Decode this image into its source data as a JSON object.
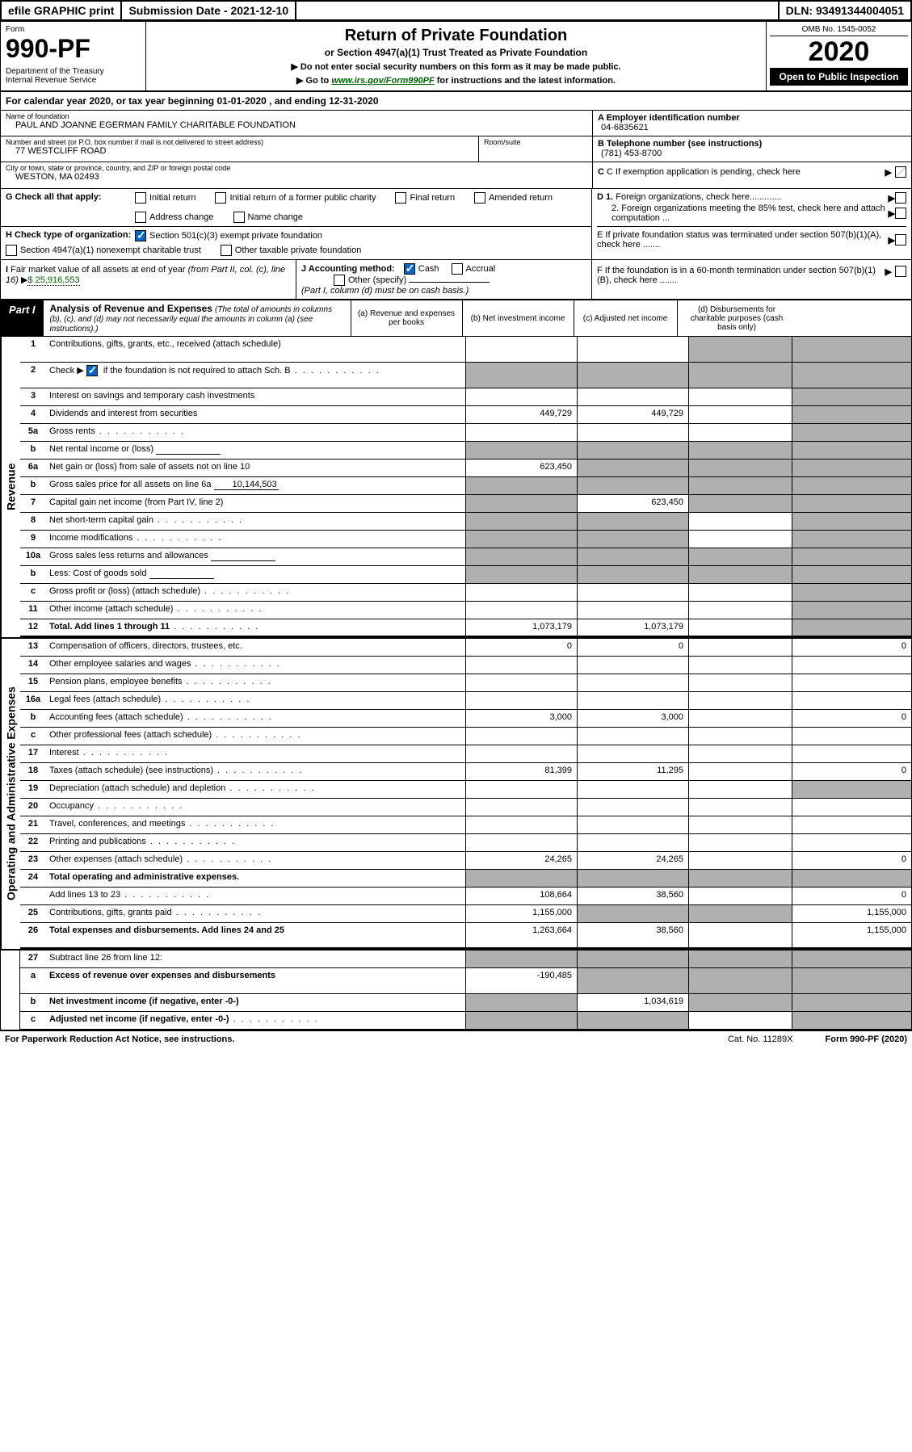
{
  "efile_bar": {
    "efile": "efile GRAPHIC print",
    "submission": "Submission Date - 2021-12-10",
    "dln": "DLN: 93491344004051"
  },
  "header": {
    "form_label": "Form",
    "form_number": "990-PF",
    "dept": "Department of the Treasury\nInternal Revenue Service",
    "title": "Return of Private Foundation",
    "subtitle": "or Section 4947(a)(1) Trust Treated as Private Foundation",
    "note1": "▶ Do not enter social security numbers on this form as it may be made public.",
    "note2_pre": "▶ Go to ",
    "note2_link": "www.irs.gov/Form990PF",
    "note2_post": " for instructions and the latest information.",
    "omb": "OMB No. 1545-0052",
    "year": "2020",
    "open": "Open to Public Inspection"
  },
  "cal_year": "For calendar year 2020, or tax year beginning 01-01-2020                                  , and ending 12-31-2020",
  "entity": {
    "name_label": "Name of foundation",
    "name": "PAUL AND JOANNE EGERMAN FAMILY CHARITABLE FOUNDATION",
    "street_label": "Number and street (or P.O. box number if mail is not delivered to street address)",
    "street": "77 WESTCLIFF ROAD",
    "room_label": "Room/suite",
    "city_label": "City or town, state or province, country, and ZIP or foreign postal code",
    "city": "WESTON, MA  02493",
    "ein_label": "A Employer identification number",
    "ein": "04-6835621",
    "phone_label": "B Telephone number (see instructions)",
    "phone": "(781) 453-8700",
    "c_label": "C If exemption application is pending, check here",
    "d1_label": "D 1. Foreign organizations, check here.............",
    "d2_label": "2. Foreign organizations meeting the 85% test, check here and attach computation ...",
    "e_label": "E  If private foundation status was terminated under section 507(b)(1)(A), check here .......",
    "f_label": "F  If the foundation is in a 60-month termination under section 507(b)(1)(B), check here ......."
  },
  "checks": {
    "g_label": "G Check all that apply:",
    "g_opts": [
      "Initial return",
      "Initial return of a former public charity",
      "Final return",
      "Amended return",
      "Address change",
      "Name change"
    ],
    "h_label": "H Check type of organization:",
    "h_opt1": "Section 501(c)(3) exempt private foundation",
    "h_opt2": "Section 4947(a)(1) nonexempt charitable trust",
    "h_opt3": "Other taxable private foundation",
    "i_label": "I Fair market value of all assets at end of year (from Part II, col. (c), line 16) ▶",
    "i_val": "$  25,916,553",
    "j_label": "J Accounting method:",
    "j_cash": "Cash",
    "j_accrual": "Accrual",
    "j_other": "Other (specify)",
    "j_note": "(Part I, column (d) must be on cash basis.)"
  },
  "part1": {
    "tag": "Part I",
    "title": "Analysis of Revenue and Expenses",
    "title_note": "(The total of amounts in columns (b), (c), and (d) may not necessarily equal the amounts in column (a) (see instructions).)",
    "col_a": "(a)   Revenue and expenses per books",
    "col_b": "(b)   Net investment income",
    "col_c": "(c)   Adjusted net income",
    "col_d": "(d)  Disbursements for charitable purposes (cash basis only)"
  },
  "revenue_label": "Revenue",
  "expenses_label": "Operating and Administrative Expenses",
  "rows": {
    "r1": {
      "num": "1",
      "desc": "Contributions, gifts, grants, etc., received (attach schedule)"
    },
    "r2": {
      "num": "2",
      "desc_pre": "Check ▶ ",
      "desc_post": " if the foundation is not required to attach Sch. B",
      "dots": true
    },
    "r3": {
      "num": "3",
      "desc": "Interest on savings and temporary cash investments"
    },
    "r4": {
      "num": "4",
      "desc": "Dividends and interest from securities",
      "a": "449,729",
      "b": "449,729"
    },
    "r5a": {
      "num": "5a",
      "desc": "Gross rents",
      "dots": true
    },
    "r5b": {
      "num": "b",
      "desc": "Net rental income or (loss)",
      "inline": true
    },
    "r6a": {
      "num": "6a",
      "desc": "Net gain or (loss) from sale of assets not on line 10",
      "a": "623,450"
    },
    "r6b": {
      "num": "b",
      "desc": "Gross sales price for all assets on line 6a",
      "inline_val": "10,144,503"
    },
    "r7": {
      "num": "7",
      "desc": "Capital gain net income (from Part IV, line 2)",
      "b": "623,450"
    },
    "r8": {
      "num": "8",
      "desc": "Net short-term capital gain",
      "dots": true
    },
    "r9": {
      "num": "9",
      "desc": "Income modifications",
      "dots": true
    },
    "r10a": {
      "num": "10a",
      "desc": "Gross sales less returns and allowances",
      "inline": true
    },
    "r10b": {
      "num": "b",
      "desc": "Less: Cost of goods sold",
      "inline": true
    },
    "r10c": {
      "num": "c",
      "desc": "Gross profit or (loss) (attach schedule)",
      "dots": true
    },
    "r11": {
      "num": "11",
      "desc": "Other income (attach schedule)",
      "dots": true
    },
    "r12": {
      "num": "12",
      "desc": "Total. Add lines 1 through 11",
      "dots": true,
      "bold": true,
      "a": "1,073,179",
      "b": "1,073,179"
    },
    "r13": {
      "num": "13",
      "desc": "Compensation of officers, directors, trustees, etc.",
      "a": "0",
      "b": "0",
      "d": "0"
    },
    "r14": {
      "num": "14",
      "desc": "Other employee salaries and wages",
      "dots": true
    },
    "r15": {
      "num": "15",
      "desc": "Pension plans, employee benefits",
      "dots": true
    },
    "r16a": {
      "num": "16a",
      "desc": "Legal fees (attach schedule)",
      "dots": true
    },
    "r16b": {
      "num": "b",
      "desc": "Accounting fees (attach schedule)",
      "dots": true,
      "a": "3,000",
      "b": "3,000",
      "d": "0"
    },
    "r16c": {
      "num": "c",
      "desc": "Other professional fees (attach schedule)",
      "dots": true
    },
    "r17": {
      "num": "17",
      "desc": "Interest",
      "dots": true
    },
    "r18": {
      "num": "18",
      "desc": "Taxes (attach schedule) (see instructions)",
      "dots": true,
      "a": "81,399",
      "b": "11,295",
      "d": "0"
    },
    "r19": {
      "num": "19",
      "desc": "Depreciation (attach schedule) and depletion",
      "dots": true
    },
    "r20": {
      "num": "20",
      "desc": "Occupancy",
      "dots": true
    },
    "r21": {
      "num": "21",
      "desc": "Travel, conferences, and meetings",
      "dots": true
    },
    "r22": {
      "num": "22",
      "desc": "Printing and publications",
      "dots": true
    },
    "r23": {
      "num": "23",
      "desc": "Other expenses (attach schedule)",
      "dots": true,
      "a": "24,265",
      "b": "24,265",
      "d": "0"
    },
    "r24": {
      "num": "24",
      "desc": "Total operating and administrative expenses.",
      "bold": true
    },
    "r24b": {
      "num": "",
      "desc": "Add lines 13 to 23",
      "dots": true,
      "a": "108,664",
      "b": "38,560",
      "d": "0"
    },
    "r25": {
      "num": "25",
      "desc": "Contributions, gifts, grants paid",
      "dots": true,
      "a": "1,155,000",
      "d": "1,155,000"
    },
    "r26": {
      "num": "26",
      "desc": "Total expenses and disbursements. Add lines 24 and 25",
      "bold": true,
      "a": "1,263,664",
      "b": "38,560",
      "d": "1,155,000"
    },
    "r27": {
      "num": "27",
      "desc": "Subtract line 26 from line 12:"
    },
    "r27a": {
      "num": "a",
      "desc": "Excess of revenue over expenses and disbursements",
      "bold": true,
      "a": "-190,485"
    },
    "r27b": {
      "num": "b",
      "desc": "Net investment income (if negative, enter -0-)",
      "bold": true,
      "b": "1,034,619"
    },
    "r27c": {
      "num": "c",
      "desc": "Adjusted net income (if negative, enter -0-)",
      "bold": true,
      "dots": true
    }
  },
  "row_shading": {
    "r1": {
      "c": true,
      "d": true
    },
    "r2": {
      "a": true,
      "b": true,
      "c": true,
      "d": true
    },
    "r3": {
      "d": true
    },
    "r4": {
      "d": true
    },
    "r5a": {
      "d": true
    },
    "r5b": {
      "a": true,
      "b": true,
      "c": true,
      "d": true
    },
    "r6a": {
      "b": true,
      "c": true,
      "d": true
    },
    "r6b": {
      "a": true,
      "b": true,
      "c": true,
      "d": true
    },
    "r7": {
      "a": true,
      "c": true,
      "d": true
    },
    "r8": {
      "a": true,
      "b": true,
      "d": true
    },
    "r9": {
      "a": true,
      "b": true,
      "d": true
    },
    "r10a": {
      "a": true,
      "b": true,
      "c": true,
      "d": true
    },
    "r10b": {
      "a": true,
      "b": true,
      "c": true,
      "d": true
    },
    "r10c": {
      "d": true
    },
    "r11": {
      "d": true
    },
    "r12": {
      "d": true
    },
    "r19": {
      "d": true
    },
    "r24": {
      "a": true,
      "b": true,
      "c": true,
      "d": true
    },
    "r25": {
      "b": true,
      "c": true
    },
    "r27": {
      "a": true,
      "b": true,
      "c": true,
      "d": true
    },
    "r27a": {
      "b": true,
      "c": true,
      "d": true
    },
    "r27b": {
      "a": true,
      "c": true,
      "d": true
    },
    "r27c": {
      "a": true,
      "b": true,
      "d": true
    }
  },
  "footer": {
    "left": "For Paperwork Reduction Act Notice, see instructions.",
    "mid": "Cat. No. 11289X",
    "right": "Form 990-PF (2020)"
  }
}
